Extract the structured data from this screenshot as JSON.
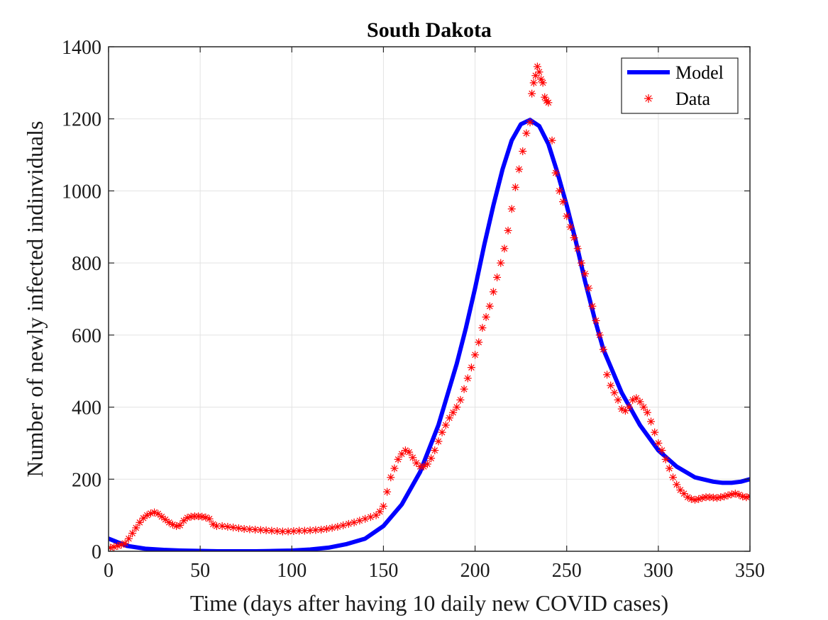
{
  "chart_data": {
    "type": "line",
    "title": "South Dakota",
    "xlabel": "Time (days after having 10 daily new COVID cases)",
    "ylabel": "Number of newly infected indinviduals",
    "xlim": [
      0,
      350
    ],
    "ylim": [
      0,
      1400
    ],
    "xticks": [
      0,
      50,
      100,
      150,
      200,
      250,
      300,
      350
    ],
    "yticks": [
      0,
      200,
      400,
      600,
      800,
      1000,
      1200,
      1400
    ],
    "grid": true,
    "legend_position": "top-right",
    "series": [
      {
        "name": "Model",
        "kind": "line",
        "color": "#0000ff",
        "x": [
          0,
          10,
          20,
          30,
          40,
          50,
          60,
          70,
          80,
          90,
          100,
          110,
          120,
          130,
          140,
          150,
          160,
          170,
          180,
          190,
          195,
          200,
          205,
          210,
          215,
          220,
          225,
          230,
          235,
          240,
          245,
          250,
          255,
          260,
          265,
          270,
          280,
          290,
          300,
          310,
          320,
          330,
          335,
          340,
          345,
          350
        ],
        "y": [
          35,
          15,
          7,
          4,
          2,
          1,
          0,
          0,
          0,
          1,
          2,
          5,
          10,
          20,
          35,
          70,
          130,
          220,
          350,
          520,
          620,
          730,
          850,
          960,
          1060,
          1140,
          1185,
          1197,
          1180,
          1130,
          1050,
          960,
          860,
          750,
          650,
          560,
          440,
          350,
          280,
          235,
          205,
          193,
          190,
          190,
          193,
          200
        ]
      },
      {
        "name": "Data",
        "kind": "scatter",
        "color": "#ff0000",
        "marker": "asterisk",
        "x": [
          1,
          3,
          5,
          7,
          9,
          11,
          13,
          15,
          17,
          19,
          21,
          23,
          25,
          27,
          29,
          31,
          33,
          35,
          37,
          39,
          41,
          43,
          45,
          47,
          49,
          51,
          53,
          55,
          57,
          59,
          62,
          65,
          68,
          71,
          74,
          77,
          80,
          83,
          86,
          89,
          92,
          95,
          98,
          101,
          104,
          107,
          110,
          113,
          116,
          119,
          122,
          125,
          128,
          131,
          134,
          137,
          140,
          143,
          146,
          148,
          150,
          152,
          154,
          156,
          158,
          160,
          162,
          164,
          166,
          168,
          170,
          172,
          174,
          176,
          178,
          180,
          182,
          184,
          186,
          188,
          190,
          192,
          194,
          196,
          198,
          200,
          202,
          204,
          206,
          208,
          210,
          212,
          214,
          216,
          218,
          220,
          222,
          224,
          226,
          228,
          230,
          231,
          232,
          233,
          234,
          235,
          236,
          237,
          238,
          239,
          240,
          242,
          244,
          246,
          248,
          250,
          252,
          254,
          256,
          258,
          260,
          262,
          264,
          266,
          268,
          270,
          272,
          274,
          276,
          278,
          280,
          282,
          284,
          286,
          288,
          290,
          292,
          294,
          296,
          298,
          300,
          302,
          304,
          306,
          308,
          310,
          312,
          314,
          316,
          318,
          320,
          322,
          324,
          326,
          328,
          330,
          332,
          334,
          336,
          338,
          340,
          342,
          344,
          346,
          348,
          350
        ],
        "y": [
          10,
          12,
          15,
          18,
          22,
          35,
          50,
          65,
          80,
          92,
          100,
          105,
          108,
          104,
          96,
          88,
          80,
          74,
          70,
          72,
          85,
          93,
          96,
          97,
          97,
          96,
          94,
          90,
          75,
          70,
          70,
          68,
          66,
          64,
          62,
          61,
          60,
          59,
          58,
          57,
          56,
          55,
          55,
          56,
          57,
          57,
          58,
          59,
          60,
          62,
          65,
          68,
          72,
          76,
          80,
          85,
          90,
          95,
          100,
          110,
          125,
          165,
          205,
          230,
          255,
          270,
          280,
          275,
          260,
          245,
          235,
          235,
          242,
          258,
          280,
          305,
          330,
          350,
          370,
          385,
          400,
          420,
          450,
          480,
          510,
          545,
          580,
          620,
          650,
          680,
          720,
          760,
          800,
          840,
          890,
          950,
          1010,
          1060,
          1110,
          1160,
          1190,
          1270,
          1300,
          1320,
          1345,
          1330,
          1310,
          1300,
          1260,
          1250,
          1245,
          1140,
          1050,
          1000,
          970,
          930,
          900,
          870,
          840,
          800,
          770,
          730,
          680,
          640,
          600,
          560,
          490,
          460,
          440,
          420,
          395,
          390,
          400,
          420,
          425,
          415,
          400,
          385,
          360,
          330,
          300,
          280,
          255,
          230,
          205,
          185,
          170,
          160,
          150,
          145,
          143,
          145,
          148,
          150,
          150,
          149,
          148,
          150,
          152,
          155,
          158,
          160,
          157,
          152,
          150,
          152
        ]
      }
    ]
  }
}
